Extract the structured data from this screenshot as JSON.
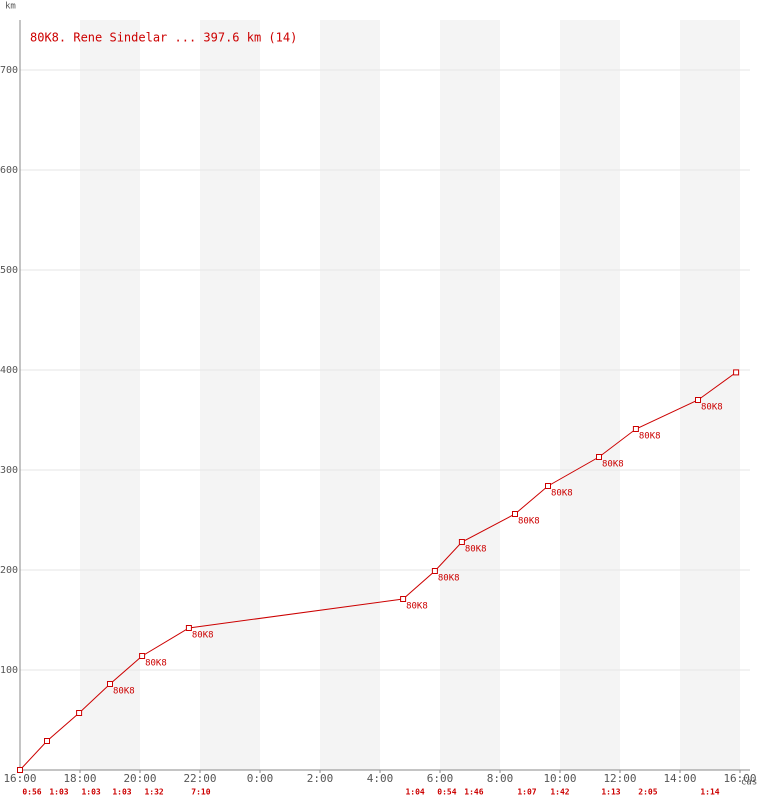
{
  "chart_data": {
    "type": "line",
    "title": "80K8. Rene Sindelar ... 397.6 km (14)",
    "y_label": "km",
    "x_label": "čas",
    "x": [
      0,
      0.9,
      1.97,
      3,
      4.07,
      5.63,
      12.77,
      13.83,
      14.73,
      16.5,
      17.6,
      19.3,
      20.53,
      22.6,
      23.87
    ],
    "series": [
      {
        "name": "80K8",
        "color": "#cc0000",
        "values": [
          0,
          29,
          57,
          86,
          114,
          142,
          171,
          199,
          228,
          256,
          284,
          313,
          341,
          370,
          397.6
        ],
        "point_labels": [
          null,
          null,
          null,
          "80K8",
          "80K8",
          "80K8",
          "80K8",
          "80K8",
          "80K8",
          "80K8",
          "80K8",
          "80K8",
          "80K8",
          "80K8",
          null
        ]
      }
    ],
    "durations": [
      "0:56",
      "1:03",
      "1:03",
      "1:03",
      "1:32",
      "7:10",
      "1:04",
      "0:54",
      "1:46",
      "1:07",
      "1:42",
      "1:13",
      "2:05",
      "1:14"
    ],
    "xlim": [
      0,
      24
    ],
    "xticks": [
      {
        "value": 0,
        "label": "16:00"
      },
      {
        "value": 2,
        "label": "18:00"
      },
      {
        "value": 4,
        "label": "20:00"
      },
      {
        "value": 6,
        "label": "22:00"
      },
      {
        "value": 8,
        "label": "0:00"
      },
      {
        "value": 10,
        "label": "2:00"
      },
      {
        "value": 12,
        "label": "4:00"
      },
      {
        "value": 14,
        "label": "6:00"
      },
      {
        "value": 16,
        "label": "8:00"
      },
      {
        "value": 18,
        "label": "10:00"
      },
      {
        "value": 20,
        "label": "12:00"
      },
      {
        "value": 22,
        "label": "14:00"
      },
      {
        "value": 24,
        "label": "16:00"
      }
    ],
    "ylim": [
      0,
      750
    ],
    "yticks": [
      100,
      200,
      300,
      400,
      500,
      600,
      700
    ],
    "grid": true
  }
}
